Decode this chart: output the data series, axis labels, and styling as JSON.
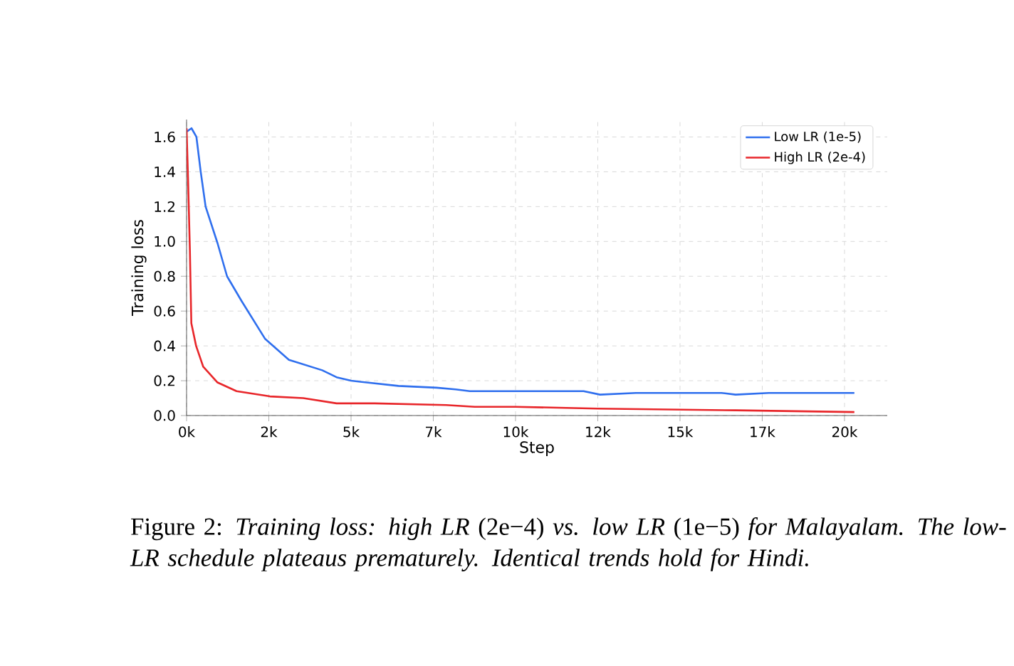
{
  "chart_data": {
    "type": "line",
    "xlabel": "Step",
    "ylabel": "Training loss",
    "xlim": [
      0,
      21300
    ],
    "ylim": [
      0,
      1.7
    ],
    "xticks": [
      {
        "value": 0,
        "label": "0k"
      },
      {
        "value": 2500,
        "label": "2k"
      },
      {
        "value": 5000,
        "label": "5k"
      },
      {
        "value": 7500,
        "label": "7k"
      },
      {
        "value": 10000,
        "label": "10k"
      },
      {
        "value": 12500,
        "label": "12k"
      },
      {
        "value": 15000,
        "label": "15k"
      },
      {
        "value": 17500,
        "label": "17k"
      },
      {
        "value": 20000,
        "label": "20k"
      }
    ],
    "yticks": [
      {
        "value": 0,
        "label": "0.0"
      },
      0.2,
      0.4,
      0.6,
      0.8,
      {
        "value": 1.0,
        "label": "1.0"
      },
      1.2,
      1.4,
      1.6
    ],
    "grid": true,
    "legend": "top right",
    "line_style": "solid",
    "marker": "none",
    "series": [
      {
        "name": "Low LR (1e-5)",
        "color": "#2f6fee",
        "x": [
          0,
          150,
          300,
          430,
          579,
          941,
          1230,
          1665,
          2389,
          3112,
          4125,
          4560,
          5000,
          6440,
          7600,
          8180,
          8610,
          10000,
          12070,
          12570,
          13660,
          16260,
          16690,
          17700,
          20300
        ],
        "values": [
          1.63,
          1.65,
          1.6,
          1.4,
          1.2,
          0.99,
          0.8,
          0.66,
          0.44,
          0.32,
          0.26,
          0.22,
          0.2,
          0.17,
          0.16,
          0.15,
          0.14,
          0.14,
          0.14,
          0.12,
          0.13,
          0.13,
          0.12,
          0.13,
          0.13
        ]
      },
      {
        "name": "High LR (2e-4)",
        "color": "#e8262a",
        "x": [
          0,
          43,
          101,
          145,
          290,
          507,
          941,
          1520,
          2533,
          3546,
          4560,
          5716,
          7890,
          8760,
          10000,
          12500,
          16690,
          20300
        ],
        "values": [
          1.65,
          1.37,
          0.95,
          0.53,
          0.4,
          0.28,
          0.19,
          0.14,
          0.11,
          0.1,
          0.07,
          0.07,
          0.06,
          0.05,
          0.05,
          0.04,
          0.03,
          0.02
        ]
      }
    ],
    "annotations": [
      "Figure 2: *Training loss: high LR* (2e−4) *vs. low LR* (1e−5) *for Malayalam. The low-LR schedule plateaus prematurely. Identical trends hold for Hindi.*"
    ]
  }
}
